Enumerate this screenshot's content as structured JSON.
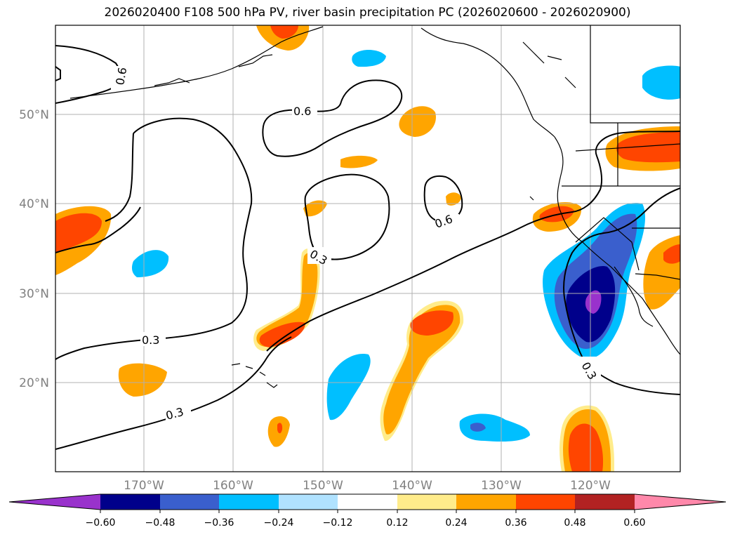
{
  "title": "2026020400 F108 500 hPa PV, river basin precipitation PC (2026020600 - 2026020900)",
  "lat_labels": [
    "50°N",
    "40°N",
    "30°N",
    "20°N"
  ],
  "lon_labels": [
    "170°W",
    "160°W",
    "150°W",
    "140°W",
    "130°W",
    "120°W"
  ],
  "contour_labels": [
    "0.6",
    "0.6",
    "0.6",
    "0.3",
    "0.3",
    "0.3",
    "0.3"
  ],
  "colorbar": {
    "labels": [
      "−0.60",
      "−0.48",
      "−0.36",
      "−0.24",
      "−0.12",
      "0.12",
      "0.24",
      "0.36",
      "0.48",
      "0.60"
    ],
    "colors": [
      "#9932cc",
      "#00008b",
      "#3a5fcd",
      "#00bfff",
      "#b0e2ff",
      "#ffffff",
      "#ffec8b",
      "#ffa500",
      "#ff4500",
      "#b22222",
      "#ff88aa"
    ]
  },
  "colors": {
    "grid": "#b0b0b0",
    "coast": "#000000",
    "tick_label": "#808080"
  }
}
